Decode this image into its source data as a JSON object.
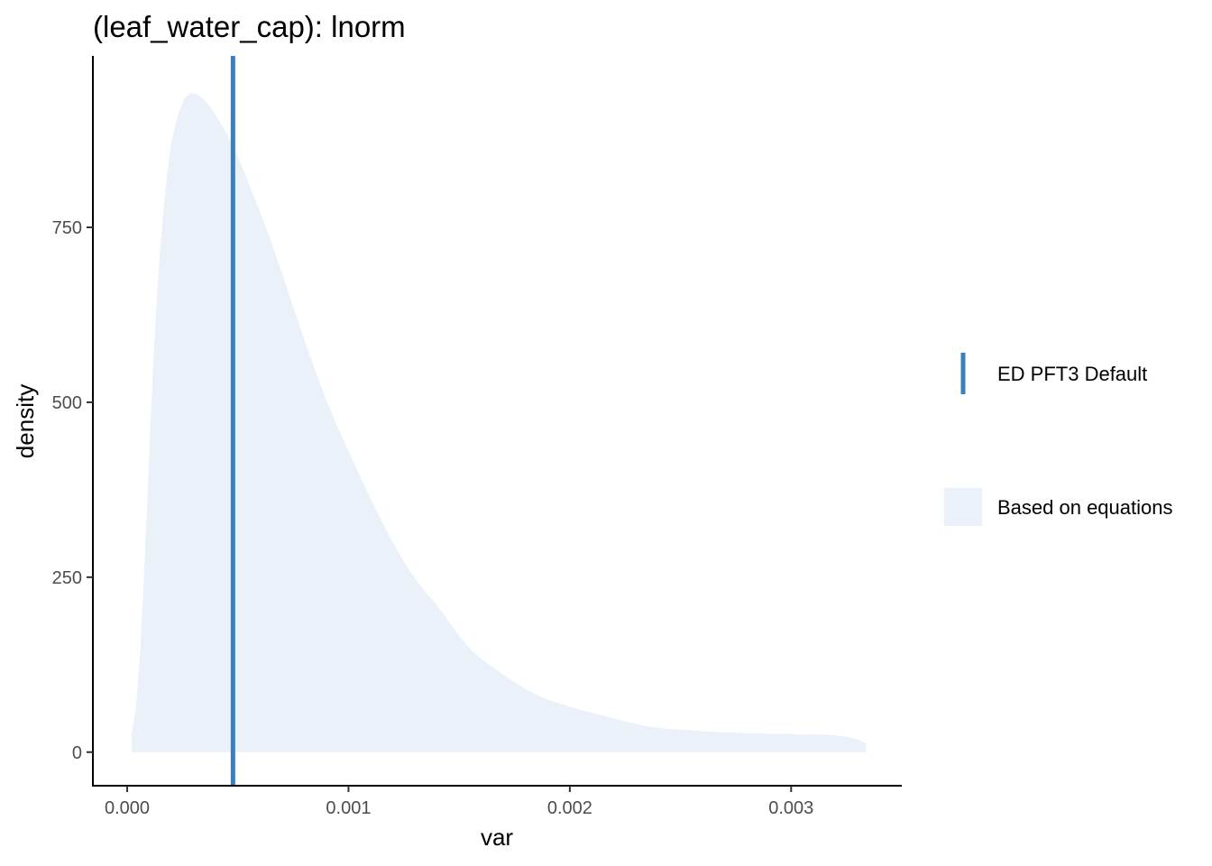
{
  "chart_data": {
    "type": "area",
    "title": "(leaf_water_cap): lnorm",
    "xlabel": "var",
    "ylabel": "density",
    "xlim": [
      -0.000155,
      0.0035
    ],
    "ylim": [
      -48,
      995
    ],
    "x_ticks": [
      {
        "value": 0.0,
        "label": "0.000"
      },
      {
        "value": 0.001,
        "label": "0.001"
      },
      {
        "value": 0.002,
        "label": "0.002"
      },
      {
        "value": 0.003,
        "label": "0.003"
      }
    ],
    "y_ticks": [
      {
        "value": 0,
        "label": "0"
      },
      {
        "value": 250,
        "label": "250"
      },
      {
        "value": 500,
        "label": "500"
      },
      {
        "value": 750,
        "label": "750"
      }
    ],
    "grid": false,
    "legend_position": "right",
    "series": [
      {
        "name": "Based on equations",
        "kind": "density-area",
        "color": "#eaf1f8",
        "x": [
          2e-05,
          4e-05,
          6e-05,
          8e-05,
          0.0001,
          0.00012,
          0.00014,
          0.00016,
          0.00018,
          0.0002,
          0.00023,
          0.00026,
          0.00029,
          0.00032,
          0.00035,
          0.00038,
          0.00041,
          0.00043,
          0.00046,
          0.00049,
          0.00052,
          0.00055,
          0.0006,
          0.00065,
          0.0007,
          0.00075,
          0.0008,
          0.00085,
          0.0009,
          0.00095,
          0.001,
          0.00105,
          0.0011,
          0.00115,
          0.0012,
          0.00125,
          0.0013,
          0.00135,
          0.0014,
          0.00145,
          0.0015,
          0.00155,
          0.0016,
          0.00165,
          0.0017,
          0.00175,
          0.0018,
          0.00185,
          0.0019,
          0.00195,
          0.002,
          0.00205,
          0.0021,
          0.00215,
          0.0022,
          0.00225,
          0.0023,
          0.00235,
          0.0024,
          0.00245,
          0.0025,
          0.00255,
          0.0026,
          0.00265,
          0.0027,
          0.00275,
          0.0028,
          0.00285,
          0.0029,
          0.00295,
          0.003,
          0.00305,
          0.0031,
          0.00315,
          0.0032,
          0.00325,
          0.0033,
          0.00334
        ],
        "values": [
          25,
          65,
          150,
          280,
          430,
          570,
          680,
          760,
          825,
          872,
          912,
          935,
          942,
          940,
          932,
          920,
          905,
          895,
          878,
          858,
          836,
          812,
          772,
          730,
          684,
          636,
          590,
          545,
          503,
          465,
          430,
          396,
          362,
          330,
          300,
          272,
          248,
          228,
          210,
          188,
          166,
          147,
          133,
          122,
          111,
          100,
          90,
          82,
          75,
          70,
          65,
          60,
          56,
          52,
          48,
          44,
          40,
          37,
          35,
          33,
          32,
          31,
          30,
          29,
          28,
          28,
          27,
          27,
          26,
          26,
          26,
          25,
          25,
          25,
          24,
          22,
          18,
          12
        ]
      },
      {
        "name": "ED PFT3 Default",
        "kind": "vline",
        "color": "#3a80bd",
        "x": 0.000478
      }
    ]
  }
}
